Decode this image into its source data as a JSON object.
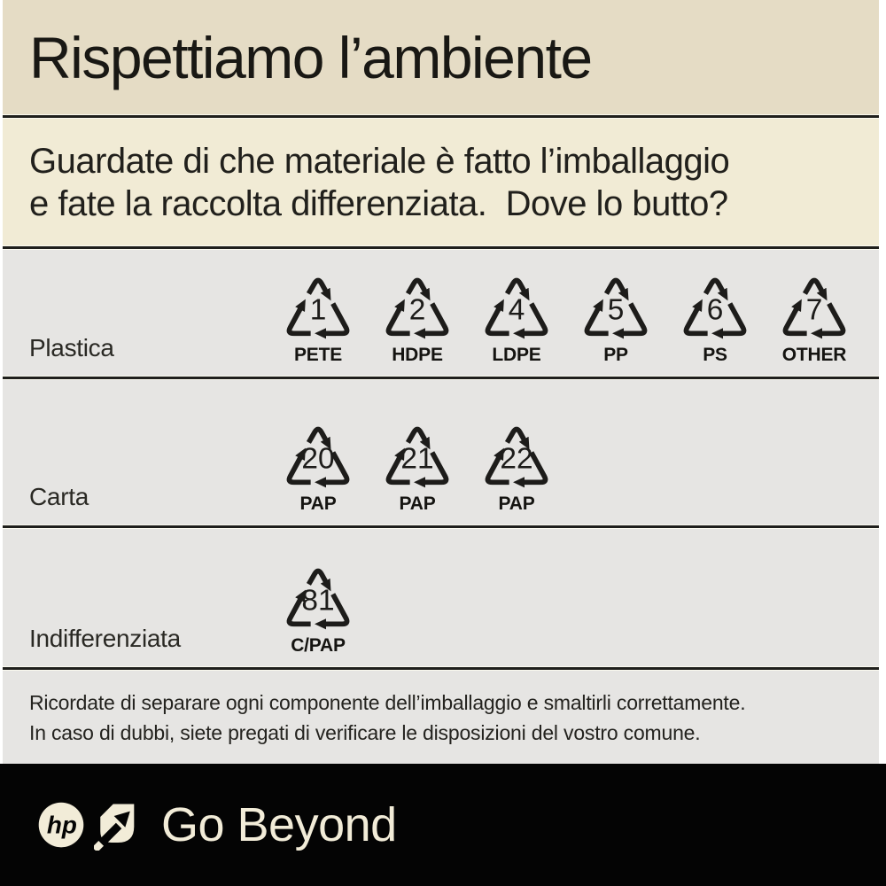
{
  "poster": {
    "title": "Rispettiamo l’ambiente",
    "subtitle_line1": "Guardate di che materiale è fatto l’imballaggio",
    "subtitle_line2": "e fate la raccolta differenziata.  Dove lo butto?",
    "note_line1": "Ricordate di separare ogni componente dell’imballaggio e smaltirli correttamente.",
    "note_line2": "In caso di dubbi, siete pregati di verificare le disposizioni del vostro comune."
  },
  "materials": [
    {
      "id": "plastica",
      "label": "Plastica",
      "symbols": [
        {
          "code": "1",
          "name": "PETE"
        },
        {
          "code": "2",
          "name": "HDPE"
        },
        {
          "code": "4",
          "name": "LDPE"
        },
        {
          "code": "5",
          "name": "PP"
        },
        {
          "code": "6",
          "name": "PS"
        },
        {
          "code": "7",
          "name": "OTHER"
        }
      ]
    },
    {
      "id": "carta",
      "label": "Carta",
      "symbols": [
        {
          "code": "20",
          "name": "PAP"
        },
        {
          "code": "21",
          "name": "PAP"
        },
        {
          "code": "22",
          "name": "PAP"
        }
      ]
    },
    {
      "id": "indifferenziata",
      "label": "Indifferenziata",
      "symbols": [
        {
          "code": "81",
          "name": "C/PAP"
        }
      ]
    }
  ],
  "footer": {
    "brand": "hp",
    "tagline": "Go Beyond"
  },
  "colors": {
    "title_band": "#e5dcc5",
    "subtitle_band": "#f1ebd5",
    "rows_band": "#e6e5e3",
    "footer_bg": "#040404",
    "footer_cream": "#f2ecd8",
    "ink": "#1d1c1a"
  }
}
